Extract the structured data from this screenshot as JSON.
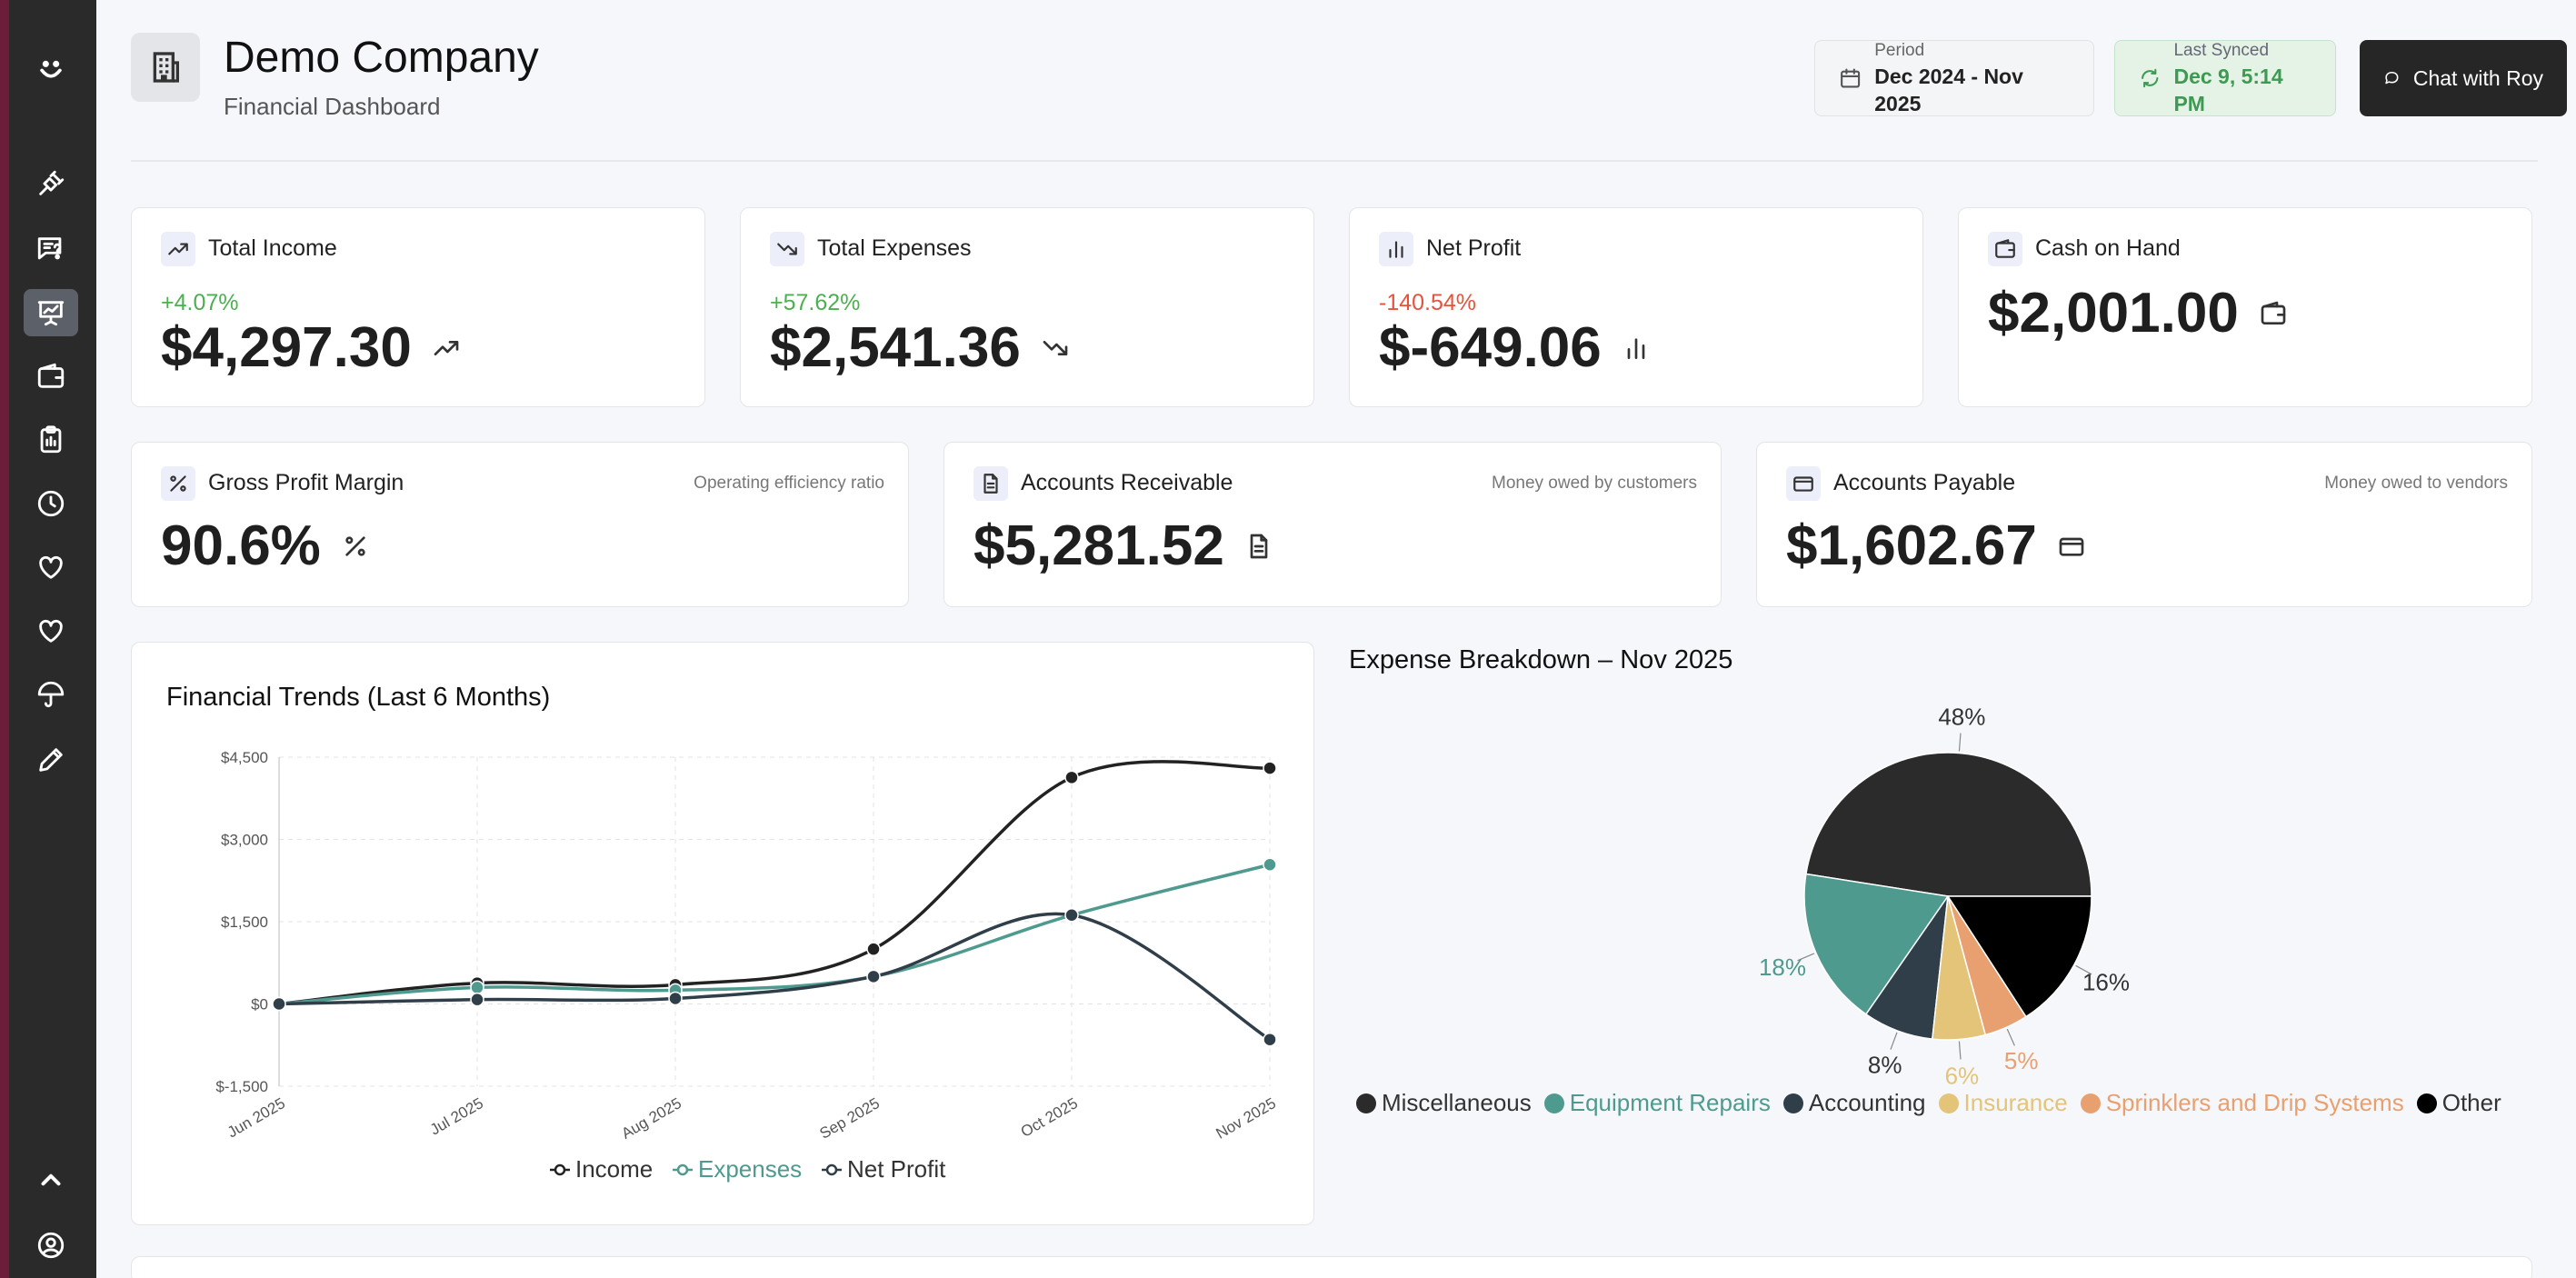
{
  "colors": {
    "sidebar": "#2a2a2a",
    "accent_strip": "#6b1d3a",
    "positive": "#4caf50",
    "negative": "#e5533d",
    "income": "#222222",
    "expenses": "#4f9a8e",
    "net_profit": "#2f3e48"
  },
  "sidebar": {
    "items": [
      {
        "icon": "smile-logo-icon"
      },
      {
        "icon": "plug-icon"
      },
      {
        "icon": "chat-question-icon"
      },
      {
        "icon": "presentation-chart-icon",
        "active": true
      },
      {
        "icon": "wallet-icon"
      },
      {
        "icon": "clipboard-icon"
      },
      {
        "icon": "clock-icon"
      },
      {
        "icon": "heart-icon"
      },
      {
        "icon": "heart-icon"
      },
      {
        "icon": "umbrella-icon"
      },
      {
        "icon": "pencil-icon"
      },
      {
        "icon": "chevron-up-icon"
      },
      {
        "icon": "user-circle-icon"
      }
    ]
  },
  "header": {
    "title": "Demo Company",
    "subtitle": "Financial Dashboard",
    "period_label": "Period",
    "period_value": "Dec 2024 - Nov 2025",
    "sync_label": "Last Synced",
    "sync_value": "Dec 9, 5:14 PM",
    "chat_label": "Chat with Roy"
  },
  "kpis": [
    {
      "title": "Total Income",
      "change": "+4.07%",
      "value": "$4,297.30",
      "icon": "trending-up-icon"
    },
    {
      "title": "Total Expenses",
      "change": "+57.62%",
      "value": "$2,541.36",
      "icon": "trending-down-icon"
    },
    {
      "title": "Net Profit",
      "change": "-140.54%",
      "value": "$-649.06",
      "icon": "bar-chart-icon"
    },
    {
      "title": "Cash on Hand",
      "value": "$2,001.00",
      "icon": "wallet-icon"
    }
  ],
  "metrics": [
    {
      "title": "Gross Profit Margin",
      "hint": "Operating efficiency ratio",
      "value": "90.6%",
      "icon": "percent-icon"
    },
    {
      "title": "Accounts Receivable",
      "hint": "Money owed by customers",
      "value": "$5,281.52",
      "icon": "document-icon"
    },
    {
      "title": "Accounts Payable",
      "hint": "Money owed to vendors",
      "value": "$1,602.67",
      "icon": "credit-card-icon"
    }
  ],
  "trend_chart": {
    "title": "Financial Trends (Last 6 Months)"
  },
  "pie_chart": {
    "title": "Expense Breakdown – Nov 2025"
  },
  "chart_data": [
    {
      "type": "line",
      "title": "Financial Trends (Last 6 Months)",
      "categories": [
        "Jun 2025",
        "Jul 2025",
        "Aug 2025",
        "Sep 2025",
        "Oct 2025",
        "Nov 2025"
      ],
      "y_ticks": [
        "$4,500",
        "$3,000",
        "$1,500",
        "$0",
        "$-1,500"
      ],
      "ylim": [
        -1500,
        4500
      ],
      "grid": true,
      "legend_position": "bottom",
      "series": [
        {
          "name": "Income",
          "color": "#222222",
          "values": [
            0,
            380,
            350,
            1000,
            4130,
            4300
          ]
        },
        {
          "name": "Expenses",
          "color": "#4f9a8e",
          "values": [
            0,
            300,
            250,
            500,
            1620,
            2540
          ]
        },
        {
          "name": "Net Profit",
          "color": "#2f3e48",
          "values": [
            0,
            80,
            100,
            500,
            1620,
            -650
          ]
        }
      ]
    },
    {
      "type": "pie",
      "title": "Expense Breakdown – Nov 2025",
      "legend_position": "bottom",
      "slices": [
        {
          "label": "Miscellaneous",
          "value": 48,
          "display": "48%",
          "color": "#2b2b2b"
        },
        {
          "label": "Equipment Repairs",
          "value": 18,
          "display": "18%",
          "color": "#4f9a8e"
        },
        {
          "label": "Accounting",
          "value": 8,
          "display": "8%",
          "color": "#2f3e48"
        },
        {
          "label": "Insurance",
          "value": 6,
          "display": "6%",
          "color": "#e3c478"
        },
        {
          "label": "Sprinklers and Drip Systems",
          "value": 5,
          "display": "5%",
          "color": "#e9a070"
        },
        {
          "label": "Other",
          "value": 16,
          "display": "16%",
          "color": "#000000"
        }
      ]
    }
  ]
}
